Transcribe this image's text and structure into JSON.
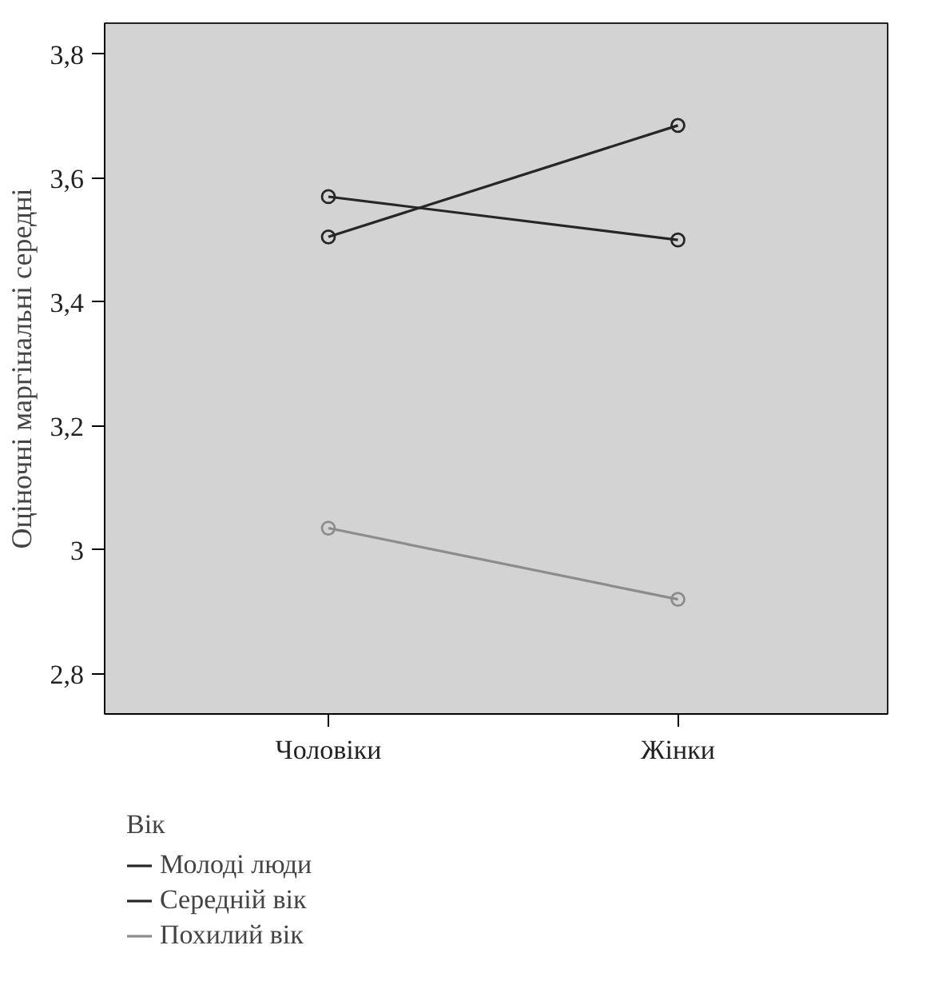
{
  "chart_data": {
    "type": "line",
    "ylabel": "Оціночні маргінальні середні",
    "legend_title": "Вік",
    "categories": [
      "Чоловіки",
      "Жінки"
    ],
    "series": [
      {
        "name": "Молоді люди",
        "color": "#262626",
        "values": [
          3.57,
          3.5
        ]
      },
      {
        "name": "Середній вік",
        "color": "#262626",
        "values": [
          3.505,
          3.685
        ]
      },
      {
        "name": "Похилий вік",
        "color": "#8c8c8c",
        "values": [
          3.035,
          2.92
        ]
      }
    ],
    "ylim": [
      2.735,
      3.85
    ],
    "yticks": [
      {
        "value": 2.8,
        "label": "2,8"
      },
      {
        "value": 3,
        "label": "3"
      },
      {
        "value": 3.2,
        "label": "3,2"
      },
      {
        "value": 3.4,
        "label": "3,4"
      },
      {
        "value": 3.6,
        "label": "3,6"
      },
      {
        "value": 3.8,
        "label": "3,8"
      }
    ],
    "marker": "circle",
    "line_style": "solid",
    "grid": false,
    "legend": "bottom"
  }
}
